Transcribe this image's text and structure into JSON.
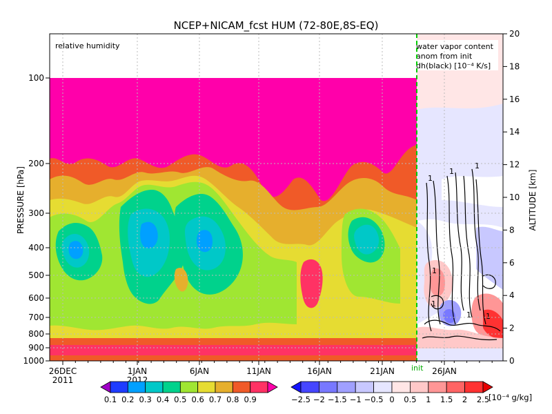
{
  "chart_data": {
    "type": "heatmap",
    "title": "NCEP+NICAM_fcst HUM (72-80E,8S-EQ)",
    "left_panel_label": "relative humidity",
    "right_panel_label": [
      "water vapor content",
      "anom from init",
      "dh(black) [10⁻⁴ K/s]"
    ],
    "init_label": "init",
    "y_left_label": "PRESSURE [hPa]",
    "y_right_label": "ALTITUDE [km]",
    "y_left_ticks": [
      "100",
      "200",
      "300",
      "400",
      "500",
      "600",
      "700",
      "800",
      "900",
      "1000"
    ],
    "y_right_ticks": [
      "0",
      "2",
      "4",
      "6",
      "8",
      "10",
      "12",
      "14",
      "16",
      "18",
      "20"
    ],
    "x_ticks": [
      "26DEC",
      "1JAN",
      "6JAN",
      "11JAN",
      "16JAN",
      "21JAN",
      "26JAN"
    ],
    "x_years": [
      "2011",
      "2012"
    ],
    "contour_label": "1",
    "colorbar_rh": {
      "labels": [
        "0.1",
        "0.2",
        "0.3",
        "0.4",
        "0.5",
        "0.6",
        "0.7",
        "0.8",
        "0.9"
      ],
      "colors": [
        "#a000c8",
        "#1e3cff",
        "#00a0ff",
        "#00c8c8",
        "#00d28c",
        "#a0e632",
        "#e6dc32",
        "#e6af2d",
        "#f05a28",
        "#ff3264",
        "#ff00aa"
      ]
    },
    "colorbar_anom": {
      "labels": [
        "−2.5",
        "−2",
        "−1.5",
        "−1",
        "−0.5",
        "0",
        "0.5",
        "1",
        "1.5",
        "2",
        "2.5"
      ],
      "unit": "[10⁻⁴ g/kg]",
      "colors": [
        "#1414ff",
        "#4646ff",
        "#7878ff",
        "#a0a0ff",
        "#c8c8ff",
        "#e6e6ff",
        "#ffe6e6",
        "#ffc8c8",
        "#ff9696",
        "#ff6464",
        "#ff3232",
        "#e60000"
      ]
    }
  }
}
